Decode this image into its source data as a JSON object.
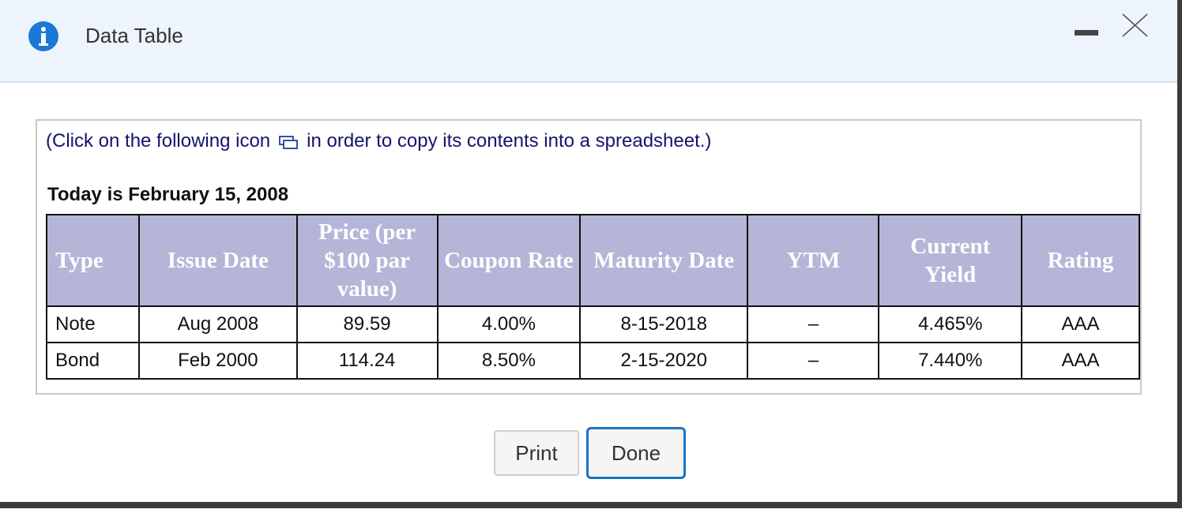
{
  "header": {
    "title": "Data Table"
  },
  "instruction": {
    "before_icon": "(Click on the following icon",
    "after_icon": "in order to copy its contents into a spreadsheet.)"
  },
  "date_line": "Today is February 15, 2008",
  "table": {
    "columns": [
      "Type",
      "Issue Date",
      "Price (per $100 par value)",
      "Coupon Rate",
      "Maturity Date",
      "YTM",
      "Current Yield",
      "Rating"
    ],
    "rows": [
      [
        "Note",
        "Aug 2008",
        "89.59",
        "4.00%",
        "8-15-2018",
        "–",
        "4.465%",
        "AAA"
      ],
      [
        "Bond",
        "Feb 2000",
        "114.24",
        "8.50%",
        "2-15-2020",
        "–",
        "7.440%",
        "AAA"
      ]
    ]
  },
  "buttons": {
    "print": "Print",
    "done": "Done"
  }
}
